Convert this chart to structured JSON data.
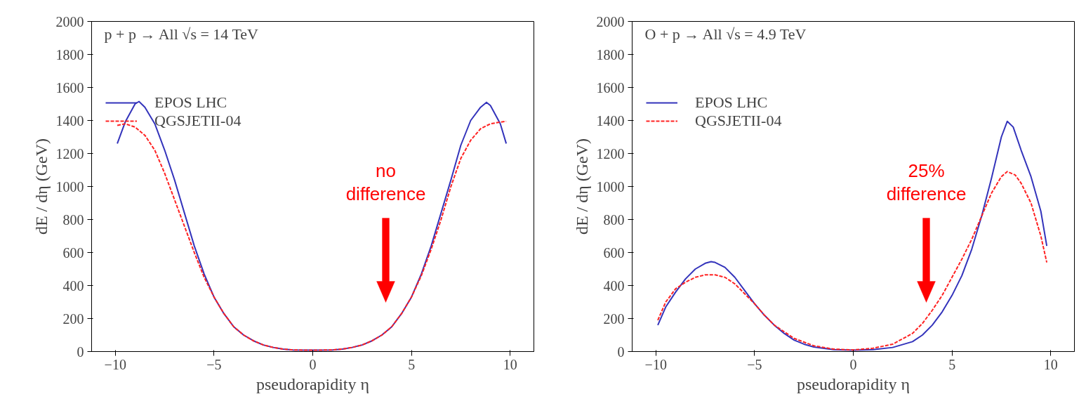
{
  "chart_data": [
    {
      "type": "line",
      "title": "p + p → All √s = 14 TeV",
      "xlabel": "pseudorapidity η",
      "ylabel": "dE / dη (GeV)",
      "xlim": [
        -11.2,
        11.2
      ],
      "ylim": [
        0,
        2000
      ],
      "xticks": [
        -10,
        -5,
        0,
        5,
        10
      ],
      "yticks": [
        0,
        200,
        400,
        600,
        800,
        1000,
        1200,
        1400,
        1600,
        1800,
        2000
      ],
      "grid": false,
      "legend": "top left",
      "annotations": [
        "no difference"
      ],
      "series": [
        {
          "name": "EPOS LHC",
          "color": "#3333bb",
          "line_style": "solid",
          "x": [
            -9.9,
            -9.5,
            -9,
            -8.8,
            -8.5,
            -8,
            -7.5,
            -7,
            -6.5,
            -6,
            -5.5,
            -5,
            -4.5,
            -4,
            -3.5,
            -3,
            -2.5,
            -2,
            -1.5,
            -1,
            0,
            1,
            1.5,
            2,
            2.5,
            3,
            3.5,
            4,
            4.5,
            5,
            5.5,
            6,
            6.5,
            7,
            7.5,
            8,
            8.5,
            8.8,
            9,
            9.5,
            9.8
          ],
          "values": [
            1260,
            1390,
            1500,
            1515,
            1480,
            1380,
            1220,
            1040,
            840,
            640,
            470,
            330,
            230,
            150,
            100,
            65,
            40,
            25,
            15,
            10,
            8,
            10,
            15,
            25,
            40,
            65,
            100,
            150,
            230,
            330,
            470,
            640,
            840,
            1040,
            1250,
            1400,
            1480,
            1510,
            1490,
            1380,
            1260
          ]
        },
        {
          "name": "QGSJETII-04",
          "color": "#ff2222",
          "line_style": "dashed",
          "x": [
            -9.9,
            -9.5,
            -9,
            -8.5,
            -8,
            -7.5,
            -7,
            -6.5,
            -6,
            -5.5,
            -5,
            -4.5,
            -4,
            -3.5,
            -3,
            -2.5,
            -2,
            -1.5,
            -1,
            0,
            1,
            1.5,
            2,
            2.5,
            3,
            3.5,
            4,
            4.5,
            5,
            5.5,
            6,
            6.5,
            7,
            7.5,
            8,
            8.5,
            9,
            9.5,
            9.8
          ],
          "values": [
            1370,
            1380,
            1360,
            1310,
            1220,
            1080,
            920,
            760,
            600,
            450,
            330,
            230,
            150,
            100,
            65,
            40,
            25,
            15,
            10,
            8,
            10,
            15,
            25,
            40,
            65,
            100,
            150,
            230,
            330,
            460,
            620,
            800,
            1000,
            1170,
            1280,
            1350,
            1380,
            1390,
            1395
          ]
        }
      ]
    },
    {
      "type": "line",
      "title": "O + p → All √s = 4.9 TeV",
      "xlabel": "pseudorapidity η",
      "ylabel": "dE / dη (GeV)",
      "xlim": [
        -11.2,
        11.2
      ],
      "ylim": [
        0,
        2000
      ],
      "xticks": [
        -10,
        -5,
        0,
        5,
        10
      ],
      "yticks": [
        0,
        200,
        400,
        600,
        800,
        1000,
        1200,
        1400,
        1600,
        1800,
        2000
      ],
      "grid": false,
      "legend": "top left",
      "annotations": [
        "25% difference"
      ],
      "series": [
        {
          "name": "EPOS LHC",
          "color": "#3333bb",
          "line_style": "solid",
          "x": [
            -9.9,
            -9.5,
            -9,
            -8.5,
            -8,
            -7.5,
            -7.2,
            -7,
            -6.5,
            -6,
            -5.5,
            -5,
            -4.5,
            -4,
            -3.5,
            -3,
            -2.5,
            -2,
            -1,
            0,
            1,
            2,
            3,
            3.5,
            4,
            4.5,
            5,
            5.5,
            6,
            6.5,
            7,
            7.5,
            7.8,
            8.1,
            8.5,
            9,
            9.5,
            9.8
          ],
          "values": [
            160,
            270,
            360,
            440,
            500,
            535,
            545,
            540,
            510,
            450,
            370,
            290,
            220,
            160,
            110,
            70,
            45,
            28,
            12,
            8,
            12,
            25,
            60,
            100,
            160,
            240,
            340,
            460,
            620,
            820,
            1050,
            1300,
            1395,
            1360,
            1220,
            1060,
            850,
            640
          ]
        },
        {
          "name": "QGSJETII-04",
          "color": "#ff2222",
          "line_style": "dashed",
          "x": [
            -9.9,
            -9.5,
            -9,
            -8.5,
            -8,
            -7.5,
            -7,
            -6.5,
            -6,
            -5.5,
            -5,
            -4.5,
            -4,
            -3,
            -2,
            -1,
            0,
            1,
            2,
            3,
            3.5,
            4,
            4.5,
            5,
            5.5,
            6,
            6.5,
            7,
            7.5,
            7.8,
            8.2,
            8.5,
            9,
            9.5,
            9.8
          ],
          "values": [
            190,
            300,
            380,
            420,
            450,
            465,
            465,
            450,
            410,
            350,
            290,
            220,
            160,
            80,
            35,
            15,
            10,
            20,
            45,
            110,
            170,
            250,
            340,
            450,
            560,
            680,
            820,
            960,
            1060,
            1090,
            1070,
            1020,
            900,
            700,
            540
          ]
        }
      ]
    }
  ]
}
